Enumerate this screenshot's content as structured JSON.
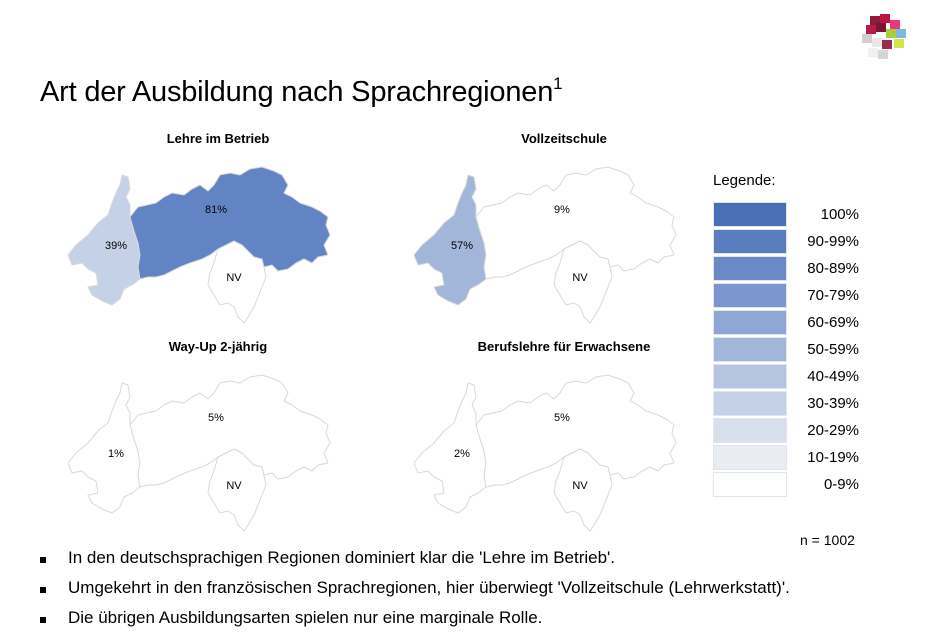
{
  "slide": {
    "title": "Art der Ausbildung nach Sprachregionen",
    "title_sup": "1"
  },
  "chart_data": [
    {
      "type": "choropleth-map",
      "title": "Lehre im Betrieb",
      "regions": [
        {
          "name": "deutschsprachig",
          "label": "81%",
          "value": 81,
          "fill": "#6384c4"
        },
        {
          "name": "französischsprachig",
          "label": "39%",
          "value": 39,
          "fill": "#c5d1e6"
        },
        {
          "name": "italienischsprachig",
          "label": "NV",
          "value": null,
          "fill": "#ffffff"
        }
      ]
    },
    {
      "type": "choropleth-map",
      "title": "Vollzeitschule",
      "regions": [
        {
          "name": "deutschsprachig",
          "label": "9%",
          "value": 9,
          "fill": "#ffffff"
        },
        {
          "name": "französischsprachig",
          "label": "57%",
          "value": 57,
          "fill": "#a2b6da"
        },
        {
          "name": "italienischsprachig",
          "label": "NV",
          "value": null,
          "fill": "#ffffff"
        }
      ]
    },
    {
      "type": "choropleth-map",
      "title": "Way-Up 2-jährig",
      "regions": [
        {
          "name": "deutschsprachig",
          "label": "5%",
          "value": 5,
          "fill": "#ffffff"
        },
        {
          "name": "französischsprachig",
          "label": "1%",
          "value": 1,
          "fill": "#ffffff"
        },
        {
          "name": "italienischsprachig",
          "label": "NV",
          "value": null,
          "fill": "#ffffff"
        }
      ]
    },
    {
      "type": "choropleth-map",
      "title": "Berufslehre für Erwachsene",
      "regions": [
        {
          "name": "deutschsprachig",
          "label": "5%",
          "value": 5,
          "fill": "#ffffff"
        },
        {
          "name": "französischsprachig",
          "label": "2%",
          "value": 2,
          "fill": "#ffffff"
        },
        {
          "name": "italienischsprachig",
          "label": "NV",
          "value": null,
          "fill": "#ffffff"
        }
      ]
    }
  ],
  "legend": {
    "title": "Legende:",
    "items": [
      {
        "label": "100%",
        "color": "#4a6fb5"
      },
      {
        "label": "90-99%",
        "color": "#5a7dc0"
      },
      {
        "label": "80-89%",
        "color": "#6a89c6"
      },
      {
        "label": "70-79%",
        "color": "#7b97cd"
      },
      {
        "label": "60-69%",
        "color": "#8fa7d4"
      },
      {
        "label": "50-59%",
        "color": "#a2b6da"
      },
      {
        "label": "40-49%",
        "color": "#b4c4e1"
      },
      {
        "label": "30-39%",
        "color": "#c5d1e6"
      },
      {
        "label": "20-29%",
        "color": "#d7dfed"
      },
      {
        "label": "10-19%",
        "color": "#e9edf3"
      },
      {
        "label": "0-9%",
        "color": "#ffffff"
      }
    ]
  },
  "sample": {
    "n_label": "n = 1002"
  },
  "bullets": [
    "In den deutschsprachigen Regionen dominiert klar die 'Lehre im Betrieb'.",
    "Umgekehrt in den französischen Sprachregionen, hier überwiegt 'Vollzeitschule (Lehrwerkstatt)'.",
    "Die übrigen Ausbildungsarten spielen nur eine marginale Rolle."
  ]
}
